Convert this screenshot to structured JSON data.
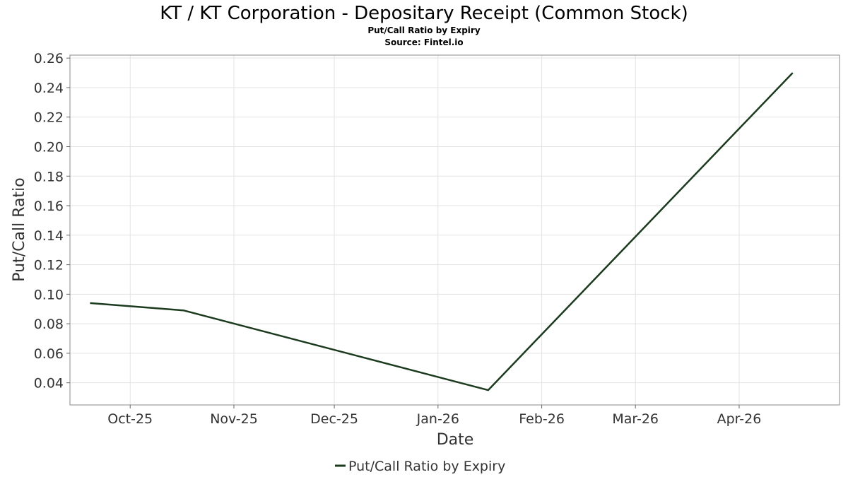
{
  "chart_data": {
    "type": "line",
    "title": "KT / KT Corporation - Depositary Receipt (Common Stock)",
    "subtitle_lines": [
      "Put/Call Ratio by Expiry",
      "Source: Fintel.io"
    ],
    "xlabel": "Date",
    "ylabel": "Put/Call Ratio",
    "xlim": [
      "2025-09-13",
      "2026-05-01"
    ],
    "ylim": [
      0.025,
      0.262
    ],
    "yticks": [
      0.04,
      0.06,
      0.08,
      0.1,
      0.12,
      0.14,
      0.16,
      0.18,
      0.2,
      0.22,
      0.24,
      0.26
    ],
    "ytick_labels": [
      "0.04",
      "0.06",
      "0.08",
      "0.10",
      "0.12",
      "0.14",
      "0.16",
      "0.18",
      "0.20",
      "0.22",
      "0.24",
      "0.26"
    ],
    "xticks": [
      "2025-10-01",
      "2025-11-01",
      "2025-12-01",
      "2026-01-01",
      "2026-02-01",
      "2026-03-01",
      "2026-04-01"
    ],
    "xtick_labels": [
      "Oct-25",
      "Nov-25",
      "Dec-25",
      "Jan-26",
      "Feb-26",
      "Mar-26",
      "Apr-26"
    ],
    "grid": true,
    "legend_position": "bottom-center",
    "series": [
      {
        "name": "Put/Call Ratio by Expiry",
        "color": "#1b3a1e",
        "points": [
          {
            "x": "2025-09-19",
            "y": 0.094
          },
          {
            "x": "2025-10-17",
            "y": 0.089
          },
          {
            "x": "2026-01-16",
            "y": 0.035
          },
          {
            "x": "2026-04-17",
            "y": 0.25
          }
        ]
      }
    ]
  }
}
